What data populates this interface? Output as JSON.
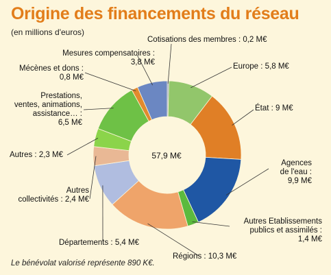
{
  "chart_data": {
    "type": "donut",
    "title": "Origine des financements du réseau",
    "subtitle": "(en millions d'euros)",
    "total_label": "57,9 M€",
    "footnote": "Le bénévolat valorisé représente 890 K€.",
    "unit": "M€",
    "slices": [
      {
        "name": "Cotisations des membres",
        "value": 0.2,
        "color": "#8a9cc6",
        "label_lines": [
          "Cotisations des membres : 0,2 M€"
        ]
      },
      {
        "name": "Europe",
        "value": 5.8,
        "color": "#92c66b",
        "label_lines": [
          "Europe : 5,8 M€"
        ]
      },
      {
        "name": "État",
        "value": 9,
        "color": "#e07f26",
        "label_lines": [
          "État : 9 M€"
        ]
      },
      {
        "name": "Agences de l'eau",
        "value": 9.9,
        "color": "#1f57a4",
        "label_lines": [
          "Agences",
          "de l'eau :",
          "9,9 M€"
        ]
      },
      {
        "name": "Autres Etablissements publics et assimilés",
        "value": 1.4,
        "color": "#5cba3e",
        "label_lines": [
          "Autres Etablissements",
          "publics et assimilés :",
          "1,4 M€"
        ]
      },
      {
        "name": "Régions",
        "value": 10.3,
        "color": "#efa46a",
        "label_lines": [
          "Régions : 10,3 M€"
        ]
      },
      {
        "name": "Départements",
        "value": 5.4,
        "color": "#b0bde0",
        "label_lines": [
          "Départements : 5,4 M€"
        ]
      },
      {
        "name": "Autres collectivités",
        "value": 2.4,
        "color": "#e9b895",
        "label_lines": [
          "Autres",
          "collectivités : 2,4 M€"
        ]
      },
      {
        "name": "Autres",
        "value": 2.3,
        "color": "#8bd44a",
        "label_lines": [
          "Autres : 2,3 M€"
        ]
      },
      {
        "name": "Prestations, ventes, animations, assistance…",
        "value": 6.5,
        "color": "#6ec146",
        "label_lines": [
          "Prestations,",
          "ventes, animations,",
          "assistance… :",
          "6,5 M€"
        ]
      },
      {
        "name": "Mécènes et dons",
        "value": 0.8,
        "color": "#e28a2e",
        "label_lines": [
          "Mécènes et dons :",
          "0,8 M€"
        ]
      },
      {
        "name": "Mesures compensatoires",
        "value": 3.8,
        "color": "#6b87c2",
        "label_lines": [
          "Mesures compensatoires :",
          "3,8 M€"
        ]
      }
    ]
  }
}
